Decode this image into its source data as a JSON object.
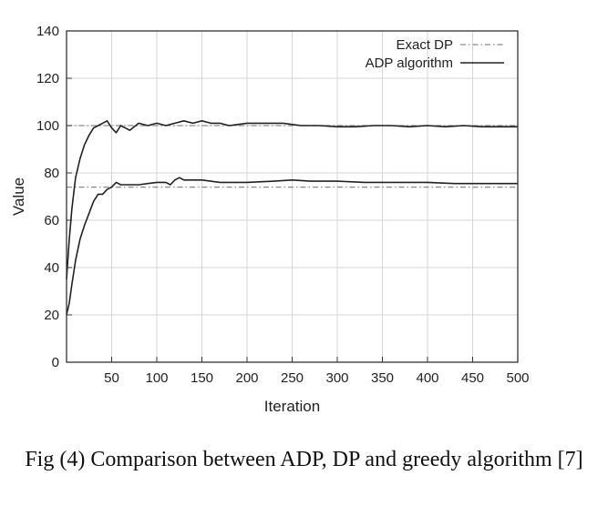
{
  "caption": "Fig (4) Comparison between ADP, DP and greedy algorithm [7]",
  "chart_data": {
    "type": "line",
    "xlabel": "Iteration",
    "ylabel": "Value",
    "xlim": [
      0,
      500
    ],
    "ylim": [
      0,
      140
    ],
    "xticks": [
      50,
      100,
      150,
      200,
      250,
      300,
      350,
      400,
      450,
      500
    ],
    "yticks": [
      0,
      20,
      40,
      60,
      80,
      100,
      120,
      140
    ],
    "grid": true,
    "legend": {
      "placement": "top-right",
      "entries": [
        {
          "label": "Exact DP",
          "style": "dash-dot",
          "color": "#888888"
        },
        {
          "label": "ADP algorithm",
          "style": "solid",
          "color": "#222222"
        }
      ]
    },
    "series": [
      {
        "name": "Exact DP",
        "x": [
          0,
          500
        ],
        "y": [
          100,
          100
        ],
        "style": "dash-dot"
      },
      {
        "name": "Exact DP",
        "x": [
          0,
          500
        ],
        "y": [
          74,
          74
        ],
        "style": "dash-dot"
      },
      {
        "name": "ADP algorithm",
        "style": "solid",
        "x": [
          0,
          3,
          6,
          10,
          15,
          20,
          25,
          30,
          35,
          40,
          45,
          50,
          55,
          60,
          65,
          70,
          80,
          90,
          100,
          110,
          120,
          130,
          140,
          150,
          160,
          170,
          180,
          200,
          220,
          240,
          260,
          280,
          300,
          320,
          340,
          360,
          380,
          400,
          420,
          440,
          460,
          480,
          500
        ],
        "y": [
          35,
          52,
          65,
          78,
          86,
          92,
          96,
          99,
          100,
          101,
          102,
          99,
          97,
          100,
          99,
          98,
          101,
          100,
          101,
          100,
          101,
          102,
          101,
          102,
          101,
          101,
          100,
          101,
          101,
          101,
          100,
          100,
          99.5,
          99.5,
          100,
          100,
          99.5,
          100,
          99.5,
          100,
          99.5,
          99.5,
          99.5
        ]
      },
      {
        "name": "ADP algorithm",
        "style": "solid",
        "x": [
          0,
          3,
          6,
          10,
          15,
          20,
          25,
          30,
          35,
          40,
          45,
          50,
          55,
          60,
          70,
          80,
          90,
          100,
          110,
          115,
          120,
          125,
          130,
          150,
          170,
          200,
          230,
          250,
          270,
          300,
          330,
          360,
          400,
          430,
          460,
          500
        ],
        "y": [
          20,
          25,
          33,
          43,
          52,
          58,
          63,
          68,
          71,
          71,
          73,
          74,
          76,
          75,
          75,
          75,
          75.5,
          76,
          76,
          75,
          77,
          78,
          77,
          77,
          76,
          76,
          76.5,
          77,
          76.5,
          76.5,
          76,
          76,
          76,
          75.5,
          75.5,
          75.5
        ]
      }
    ]
  }
}
